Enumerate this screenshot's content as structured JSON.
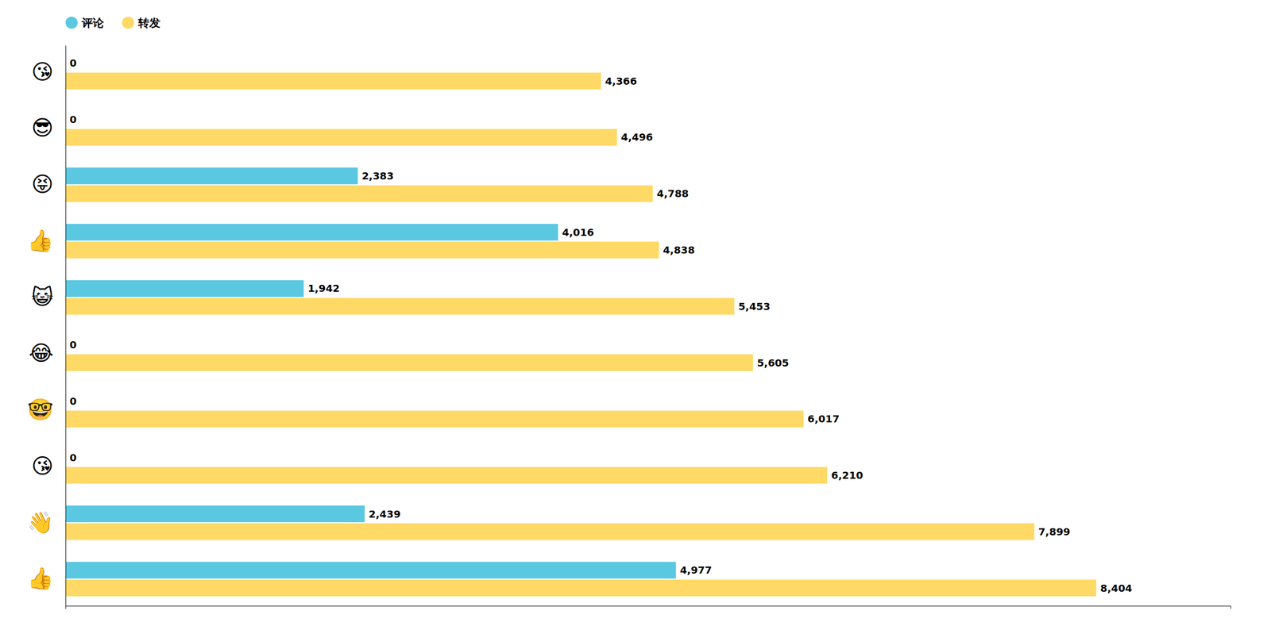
{
  "chart_data": {
    "type": "bar",
    "orientation": "horizontal",
    "categories": [
      "😘",
      "😎",
      "😝",
      "👍",
      "😺",
      "😂",
      "🤓",
      "😘",
      "👋",
      "👍"
    ],
    "series": [
      {
        "name": "评论",
        "color": "#5BC8E2",
        "values": [
          0,
          0,
          2383,
          4016,
          1942,
          0,
          0,
          0,
          2439,
          4977
        ],
        "value_labels": [
          "0",
          "0",
          "2,383",
          "4,016",
          "1,942",
          "0",
          "0",
          "0",
          "2,439",
          "4,977"
        ]
      },
      {
        "name": "转发",
        "color": "#FFD966",
        "values": [
          4366,
          4496,
          4788,
          4838,
          5453,
          5605,
          6017,
          6210,
          7899,
          8404
        ],
        "value_labels": [
          "4,366",
          "4,496",
          "4,788",
          "4,838",
          "5,453",
          "5,605",
          "6,017",
          "6,210",
          "7,899",
          "8,404"
        ]
      }
    ],
    "xlim": [
      0,
      9500
    ],
    "data_labels": true,
    "tick_labels": "y",
    "legend": "upper left",
    "grid": false
  }
}
